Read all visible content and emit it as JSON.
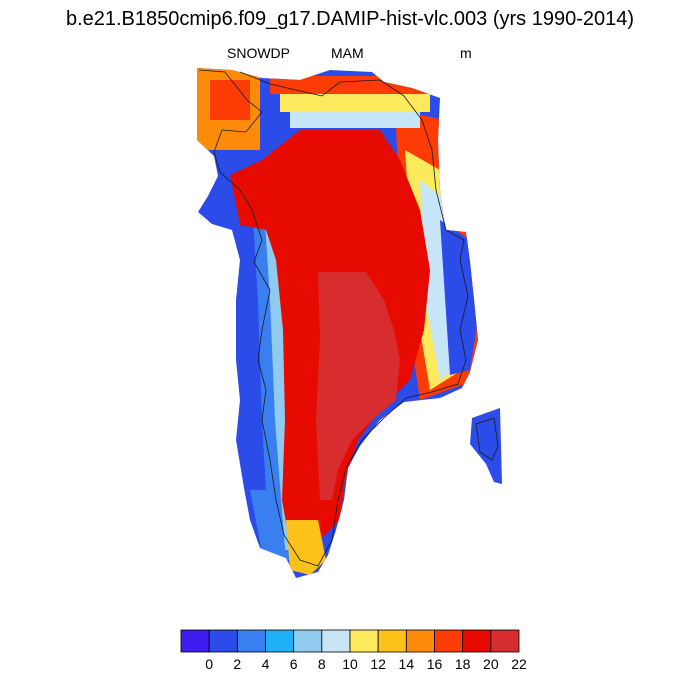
{
  "title": "b.e21.B1850cmip6.f09_g17.DAMIP-hist-vlc.003 (yrs 1990-2014)",
  "subtitle": {
    "variable": "SNOWDP",
    "season": "MAM",
    "units": "m"
  },
  "colorbar": {
    "colors": [
      "#3d1df0",
      "#2b4ce8",
      "#3a7ff0",
      "#1fb0f5",
      "#8fcbee",
      "#c6e6f7",
      "#fde95c",
      "#fdc219",
      "#fd8a09",
      "#fd3b05",
      "#e60a00",
      "#d72d2f"
    ],
    "labels": [
      "0",
      "2",
      "4",
      "6",
      "8",
      "10",
      "12",
      "14",
      "16",
      "18",
      "20",
      "22"
    ]
  },
  "map": {
    "region": "Greenland",
    "field": "snow depth"
  }
}
